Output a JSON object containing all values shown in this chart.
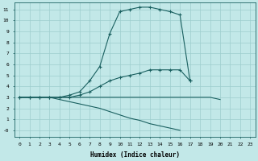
{
  "xlabel": "Humidex (Indice chaleur)",
  "bg_color": "#c2e8e8",
  "grid_color": "#9dcece",
  "line_color": "#1a6060",
  "xlim": [
    -0.5,
    23.5
  ],
  "ylim": [
    -0.6,
    11.6
  ],
  "xticks": [
    0,
    1,
    2,
    3,
    4,
    5,
    6,
    7,
    8,
    9,
    10,
    11,
    12,
    13,
    14,
    15,
    16,
    17,
    18,
    19,
    20,
    21,
    22,
    23
  ],
  "yticks": [
    0,
    1,
    2,
    3,
    4,
    5,
    6,
    7,
    8,
    9,
    10,
    11
  ],
  "ytick_labels": [
    "-0",
    "1",
    "2",
    "3",
    "4",
    "5",
    "6",
    "7",
    "8",
    "9",
    "10",
    "11"
  ],
  "lines": [
    {
      "x": [
        0,
        1,
        2,
        3,
        4,
        5,
        6,
        7,
        8,
        9,
        10,
        11,
        12,
        13,
        14,
        15,
        16,
        17,
        18,
        19,
        20,
        21,
        22,
        23
      ],
      "y": [
        3.0,
        3.0,
        3.0,
        3.0,
        3.0,
        3.2,
        3.5,
        4.5,
        5.8,
        8.8,
        10.8,
        11.0,
        11.2,
        11.2,
        11.0,
        10.8,
        10.5,
        4.5,
        null,
        null,
        null,
        null,
        null,
        null
      ],
      "marker": true
    },
    {
      "x": [
        0,
        1,
        2,
        3,
        4,
        5,
        6,
        7,
        8,
        9,
        10,
        11,
        12,
        13,
        14,
        15,
        16,
        17,
        18,
        19,
        20,
        21,
        22,
        23
      ],
      "y": [
        3.0,
        3.0,
        3.0,
        3.0,
        3.0,
        3.0,
        3.2,
        3.5,
        4.0,
        4.5,
        4.8,
        5.0,
        5.2,
        5.5,
        5.5,
        5.5,
        5.5,
        4.5,
        null,
        null,
        null,
        null,
        null,
        null
      ],
      "marker": true
    },
    {
      "x": [
        0,
        1,
        2,
        3,
        4,
        5,
        6,
        7,
        8,
        9,
        10,
        11,
        12,
        13,
        14,
        15,
        16,
        17,
        18,
        19,
        20,
        21,
        22,
        23
      ],
      "y": [
        3.0,
        3.0,
        3.0,
        3.0,
        3.0,
        3.0,
        3.0,
        3.0,
        3.0,
        3.0,
        3.0,
        3.0,
        3.0,
        3.0,
        3.0,
        3.0,
        3.0,
        3.0,
        3.0,
        3.0,
        2.8,
        null,
        null,
        null
      ],
      "marker": false
    },
    {
      "x": [
        0,
        1,
        2,
        3,
        4,
        5,
        6,
        7,
        8,
        9,
        10,
        11,
        12,
        13,
        14,
        15,
        16,
        17,
        18,
        19,
        20,
        21,
        22,
        23
      ],
      "y": [
        3.0,
        3.0,
        3.0,
        3.0,
        2.8,
        2.6,
        2.4,
        2.2,
        2.0,
        1.7,
        1.4,
        1.1,
        0.9,
        0.6,
        0.4,
        0.2,
        0.0,
        null,
        null,
        null,
        null,
        null,
        null,
        null
      ],
      "marker": false
    }
  ]
}
